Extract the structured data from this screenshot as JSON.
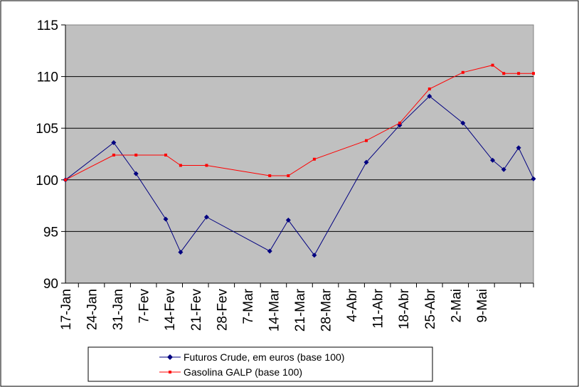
{
  "chart_data": {
    "type": "line",
    "title": "",
    "xlabel": "",
    "ylabel": "",
    "ylim": [
      90,
      115
    ],
    "yticks": [
      "90",
      "95",
      "100",
      "105",
      "110",
      "115"
    ],
    "x_range_days": [
      0,
      126
    ],
    "x_tick_labels": [
      "17-Jan",
      "24-Jan",
      "31-Jan",
      "7-Fev",
      "14-Fev",
      "21-Fev",
      "28-Fev",
      "7-Mar",
      "14-Mar",
      "21-Mar",
      "28-Mar",
      "4-Abr",
      "11-Abr",
      "18-Abr",
      "25-Abr",
      "2-Mai",
      "9-Mai"
    ],
    "grid": "horizontal",
    "legend_position": "bottom",
    "plot_background": "#c0c0c0",
    "series": [
      {
        "name": "Futuros Crude, em euros (base 100)",
        "color": "#000080",
        "marker": "diamond",
        "points": [
          {
            "d": 0,
            "y": 100.0
          },
          {
            "d": 13,
            "y": 103.6
          },
          {
            "d": 19,
            "y": 100.6
          },
          {
            "d": 27,
            "y": 96.2
          },
          {
            "d": 31,
            "y": 93.0
          },
          {
            "d": 38,
            "y": 96.4
          },
          {
            "d": 55,
            "y": 93.1
          },
          {
            "d": 60,
            "y": 96.1
          },
          {
            "d": 67,
            "y": 92.7
          },
          {
            "d": 81,
            "y": 101.7
          },
          {
            "d": 90,
            "y": 105.3
          },
          {
            "d": 98,
            "y": 108.1
          },
          {
            "d": 107,
            "y": 105.5
          },
          {
            "d": 115,
            "y": 101.9
          },
          {
            "d": 118,
            "y": 101.0
          },
          {
            "d": 122,
            "y": 103.1
          },
          {
            "d": 126,
            "y": 100.1
          }
        ]
      },
      {
        "name": "Gasolina GALP (base 100)",
        "color": "#ff0000",
        "marker": "square",
        "points": [
          {
            "d": 0,
            "y": 100.0
          },
          {
            "d": 13,
            "y": 102.4
          },
          {
            "d": 19,
            "y": 102.4
          },
          {
            "d": 27,
            "y": 102.4
          },
          {
            "d": 31,
            "y": 101.4
          },
          {
            "d": 38,
            "y": 101.4
          },
          {
            "d": 55,
            "y": 100.4
          },
          {
            "d": 60,
            "y": 100.4
          },
          {
            "d": 67,
            "y": 102.0
          },
          {
            "d": 81,
            "y": 103.8
          },
          {
            "d": 90,
            "y": 105.5
          },
          {
            "d": 98,
            "y": 108.8
          },
          {
            "d": 107,
            "y": 110.4
          },
          {
            "d": 115,
            "y": 111.1
          },
          {
            "d": 118,
            "y": 110.3
          },
          {
            "d": 122,
            "y": 110.3
          },
          {
            "d": 126,
            "y": 110.3
          }
        ]
      }
    ]
  }
}
